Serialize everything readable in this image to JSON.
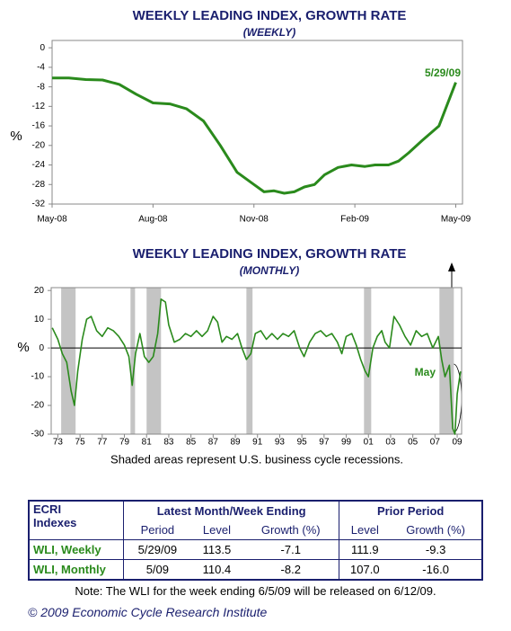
{
  "chart_data": [
    {
      "type": "line",
      "title": "WEEKLY LEADING INDEX, GROWTH RATE",
      "subtitle": "(WEEKLY)",
      "ylabel": "%",
      "annotation": "5/29/09",
      "color": "#2a8a1c",
      "x": [
        0,
        0.5,
        1,
        1.5,
        2,
        2.5,
        3,
        3.5,
        4,
        4.5,
        5,
        5.5,
        6,
        6.3,
        6.6,
        6.9,
        7.2,
        7.5,
        7.8,
        8.1,
        8.5,
        8.9,
        9.3,
        9.6,
        10,
        10.3,
        10.6,
        11,
        11.5,
        12
      ],
      "values": [
        -6.2,
        -6.2,
        -6.5,
        -6.6,
        -7.5,
        -9.5,
        -11.3,
        -11.5,
        -12.5,
        -15,
        -20,
        -25.5,
        -28,
        -29.5,
        -29.3,
        -29.8,
        -29.5,
        -28.5,
        -28,
        -26,
        -24.5,
        -24,
        -24.3,
        -24,
        -24,
        -23.2,
        -21.5,
        -19,
        -16,
        -7.1
      ],
      "xlim": [
        0,
        12.2
      ],
      "ylim": [
        -32,
        1.5
      ],
      "xticks": [
        {
          "value": 0,
          "label": "May-08"
        },
        {
          "value": 3,
          "label": "Aug-08"
        },
        {
          "value": 6,
          "label": "Nov-08"
        },
        {
          "value": 9,
          "label": "Feb-09"
        },
        {
          "value": 12,
          "label": "May-09"
        }
      ],
      "yticks": [
        0,
        -4,
        -8,
        -12,
        -16,
        -20,
        -24,
        -28,
        -32
      ]
    },
    {
      "type": "line",
      "title": "WEEKLY LEADING INDEX, GROWTH RATE",
      "subtitle": "(MONTHLY)",
      "ylabel": "%",
      "annotation": "May",
      "color": "#2a8a1c",
      "footnote": "Shaded areas represent U.S. business cycle recessions.",
      "refline": 0,
      "shaded": [
        [
          1973.3,
          1974.6
        ],
        [
          1979.55,
          1979.96
        ],
        [
          1981.0,
          1982.3
        ],
        [
          1990.0,
          1990.55
        ],
        [
          2000.6,
          2001.25
        ],
        [
          2007.4,
          2008.7
        ]
      ],
      "x": [
        1972.5,
        1973.0,
        1973.4,
        1973.8,
        1974.2,
        1974.5,
        1974.8,
        1975.2,
        1975.6,
        1976.0,
        1976.5,
        1977.0,
        1977.5,
        1978.0,
        1978.5,
        1979.0,
        1979.4,
        1979.7,
        1980.0,
        1980.4,
        1980.8,
        1981.2,
        1981.6,
        1982.0,
        1982.3,
        1982.7,
        1983.0,
        1983.5,
        1984.0,
        1984.5,
        1985.0,
        1985.5,
        1986.0,
        1986.5,
        1987.0,
        1987.4,
        1987.8,
        1988.2,
        1988.7,
        1989.2,
        1989.6,
        1990.0,
        1990.4,
        1990.8,
        1991.3,
        1991.8,
        1992.3,
        1992.8,
        1993.3,
        1993.8,
        1994.3,
        1994.8,
        1995.2,
        1995.7,
        1996.2,
        1996.7,
        1997.2,
        1997.7,
        1998.2,
        1998.6,
        1999.0,
        1999.5,
        1999.9,
        2000.3,
        2000.7,
        2001.0,
        2001.4,
        2001.8,
        2002.2,
        2002.5,
        2002.9,
        2003.3,
        2003.8,
        2004.3,
        2004.8,
        2005.3,
        2005.8,
        2006.3,
        2006.8,
        2007.3,
        2007.6,
        2007.9,
        2008.3,
        2008.6,
        2008.8,
        2009.0,
        2009.3
      ],
      "values": [
        7,
        3,
        -2,
        -5,
        -15,
        -20,
        -8,
        3,
        10,
        11,
        6,
        4,
        7,
        6,
        4,
        1,
        -3,
        -13,
        -2,
        5,
        -3,
        -5,
        -3,
        5,
        17,
        16,
        8,
        2,
        3,
        5,
        4,
        6,
        4,
        6,
        11,
        9,
        2,
        4,
        3,
        5,
        0,
        -4,
        -2,
        5,
        6,
        3,
        5,
        3,
        5,
        4,
        6,
        0,
        -3,
        2,
        5,
        6,
        4,
        5,
        2,
        -2,
        4,
        5,
        1,
        -4,
        -8,
        -10,
        0,
        4,
        6,
        2,
        0,
        11,
        8,
        4,
        1,
        6,
        4,
        5,
        0,
        4,
        -4,
        -10,
        -6,
        -28,
        -30,
        -16,
        -8.2
      ],
      "xlim": [
        1972.4,
        2009.4
      ],
      "ylim": [
        -30,
        21
      ],
      "xticks": [
        {
          "value": 1973,
          "label": "73"
        },
        {
          "value": 1975,
          "label": "75"
        },
        {
          "value": 1977,
          "label": "77"
        },
        {
          "value": 1979,
          "label": "79"
        },
        {
          "value": 1981,
          "label": "81"
        },
        {
          "value": 1983,
          "label": "83"
        },
        {
          "value": 1985,
          "label": "85"
        },
        {
          "value": 1987,
          "label": "87"
        },
        {
          "value": 1989,
          "label": "89"
        },
        {
          "value": 1991,
          "label": "91"
        },
        {
          "value": 1993,
          "label": "93"
        },
        {
          "value": 1995,
          "label": "95"
        },
        {
          "value": 1997,
          "label": "97"
        },
        {
          "value": 1999,
          "label": "99"
        },
        {
          "value": 2001,
          "label": "01"
        },
        {
          "value": 2003,
          "label": "03"
        },
        {
          "value": 2005,
          "label": "05"
        },
        {
          "value": 2007,
          "label": "07"
        },
        {
          "value": 2009,
          "label": "09"
        }
      ],
      "yticks": [
        20,
        10,
        0,
        -10,
        -20,
        -30
      ]
    }
  ],
  "table": {
    "corner": [
      "ECRI",
      "Indexes"
    ],
    "groups": [
      "Latest Month/Week Ending",
      "Prior Period"
    ],
    "columns": [
      "Period",
      "Level",
      "Growth (%)",
      "Level",
      "Growth (%)"
    ],
    "rows": [
      [
        "WLI, Weekly",
        "5/29/09",
        "113.5",
        "-7.1",
        "111.9",
        "-9.3"
      ],
      [
        "WLI, Monthly",
        "5/09",
        "110.4",
        "-8.2",
        "107.0",
        "-16.0"
      ]
    ]
  },
  "note": "Note: The WLI for the week ending 6/5/09 will be released on 6/12/09.",
  "copyright": "© 2009 Economic Cycle Research Institute"
}
